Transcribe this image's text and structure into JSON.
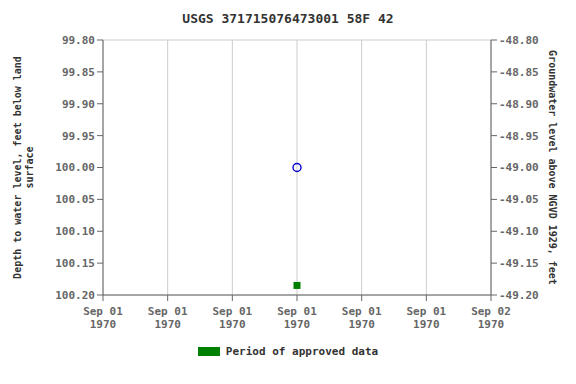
{
  "chart_data": {
    "type": "scatter",
    "title": "USGS 371715076473001 58F 42",
    "categories": [
      "Sep 01\n1970",
      "Sep 01\n1970",
      "Sep 01\n1970",
      "Sep 01\n1970",
      "Sep 01\n1970",
      "Sep 01\n1970",
      "Sep 02\n1970"
    ],
    "series": [
      {
        "color": "#0000cc",
        "marker": "circle_open",
        "values": [
          null,
          null,
          null,
          100.0,
          null,
          null,
          null
        ]
      },
      {
        "name": "Period of approved data",
        "color": "#008000",
        "marker": "square",
        "values": [
          null,
          null,
          null,
          100.185,
          null,
          null,
          null
        ]
      }
    ],
    "ylabel": "Depth to water level, feet below land\nsurface",
    "y2label": "Groundwater level above NGVD 1929, feet",
    "ylim": [
      99.8,
      100.2
    ],
    "yticks": [
      {
        "value": 99.8,
        "label": "99.80"
      },
      {
        "value": 99.85,
        "label": "99.85"
      },
      {
        "value": 99.9,
        "label": "99.90"
      },
      {
        "value": 99.95,
        "label": "99.95"
      },
      {
        "value": 100.0,
        "label": "100.00"
      },
      {
        "value": 100.05,
        "label": "100.05"
      },
      {
        "value": 100.1,
        "label": "100.10"
      },
      {
        "value": 100.15,
        "label": "100.15"
      },
      {
        "value": 100.2,
        "label": "100.20"
      }
    ],
    "y2lim": [
      -48.8,
      -49.2
    ],
    "y2ticks": [
      {
        "value": -48.8,
        "label": "-48.80"
      },
      {
        "value": -48.85,
        "label": "-48.85"
      },
      {
        "value": -48.9,
        "label": "-48.90"
      },
      {
        "value": -48.95,
        "label": "-48.95"
      },
      {
        "value": -49.0,
        "label": "-49.00"
      },
      {
        "value": -49.05,
        "label": "-49.05"
      },
      {
        "value": -49.1,
        "label": "-49.10"
      },
      {
        "value": -49.15,
        "label": "-49.15"
      },
      {
        "value": -49.2,
        "label": "-49.20"
      }
    ],
    "grid": true,
    "legend": "bottom"
  }
}
